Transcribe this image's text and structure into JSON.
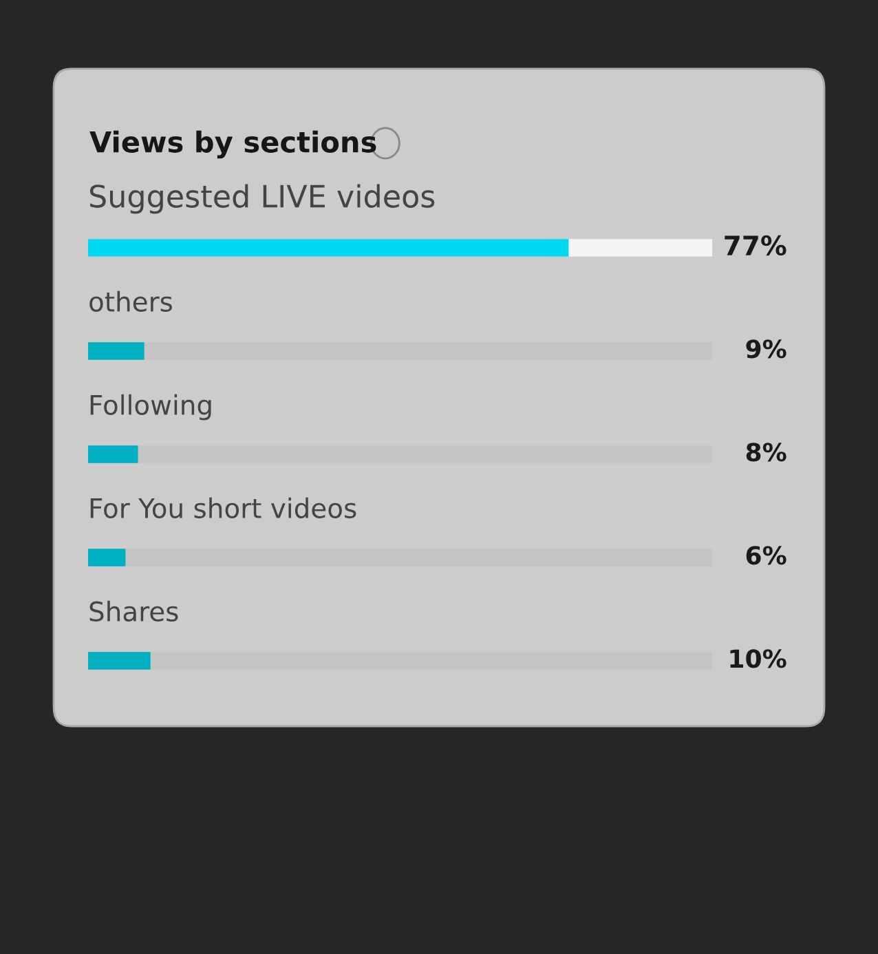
{
  "chart_data": {
    "type": "bar",
    "orientation": "horizontal",
    "title": "Views by sections",
    "categories": [
      "Suggested LIVE videos",
      "others",
      "Following",
      "For You short videos",
      "Shares"
    ],
    "values": [
      77,
      9,
      8,
      6,
      10
    ],
    "colors": [
      "#00d8f0",
      "#00afc1",
      "#00afc1",
      "#00afc1",
      "#00afc1"
    ],
    "value_labels": [
      "77%",
      "9%",
      "8%",
      "6%",
      "10%"
    ],
    "xlim": [
      0,
      100
    ],
    "grid": false,
    "legend": false,
    "tick_labels": false
  }
}
